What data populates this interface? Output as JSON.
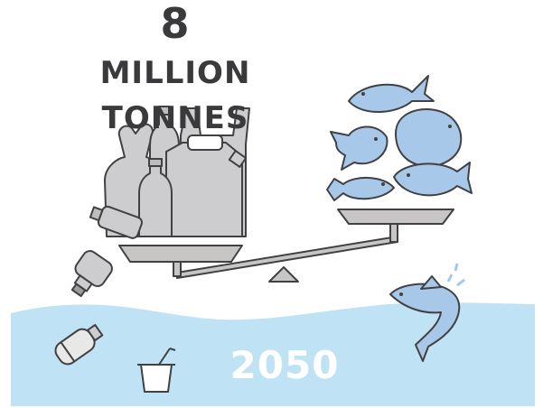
{
  "headline": {
    "amount": "8",
    "unit": "MILLION",
    "unit_line2": "TONNES"
  },
  "year_label": "2050",
  "colors": {
    "ocean": "#bfe3f5",
    "fish": "#a8c8ea",
    "plastic": "#cdcdcf",
    "scale": "#c8c6c5",
    "outline": "#414042",
    "text_dark": "#3a3a3c",
    "text_light": "#ffffff"
  },
  "icons": [
    "plastic-waste-pile-icon",
    "fish-group-icon",
    "balance-scale-icon",
    "jumping-fish-icon",
    "floating-bottle-icon",
    "floating-cup-icon",
    "falling-bottle-icon"
  ]
}
